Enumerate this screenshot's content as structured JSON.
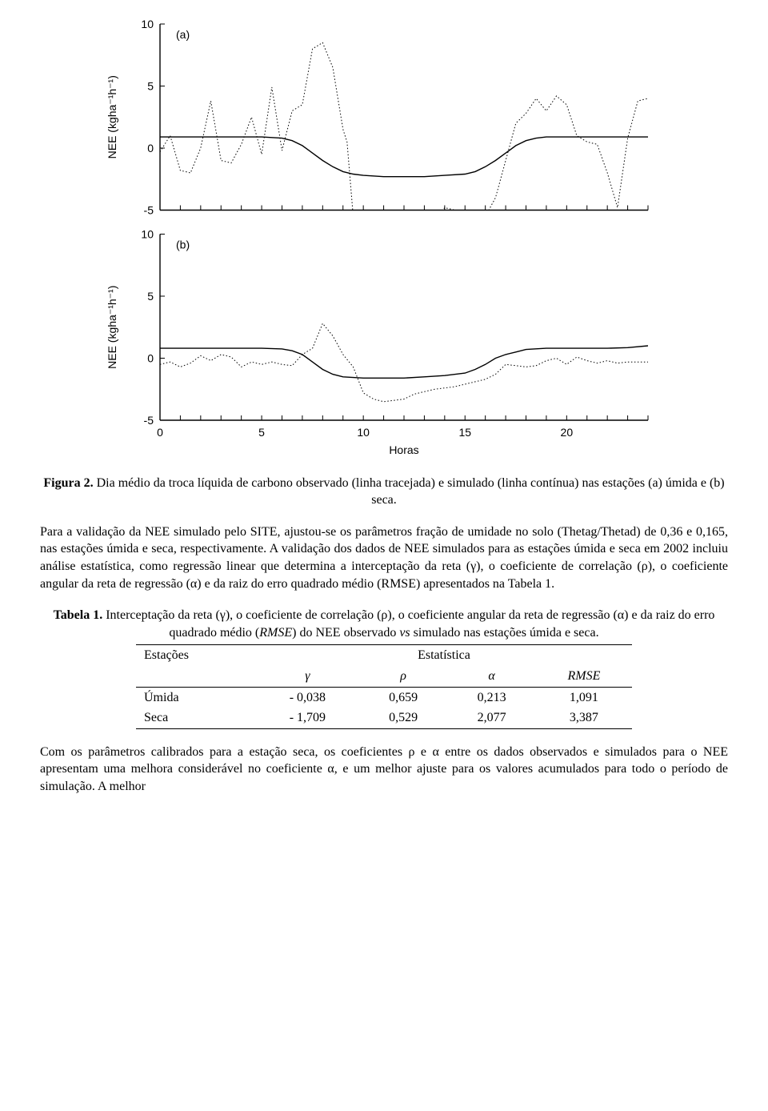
{
  "chart": {
    "background": "#ffffff",
    "axis_color": "#000000",
    "solid_color": "#000000",
    "dotted_color": "#000000",
    "solid_dash": "none",
    "dotted_dash": "1.5,2.5",
    "solid_width": 1.4,
    "dotted_width": 1.0,
    "tick_fontsize": 14,
    "label_fontsize": 14,
    "panel_label_fontsize": 14,
    "xlabel": "Horas",
    "ylabel_a": "NEE (kgha⁻¹h⁻¹)",
    "ylabel_b": "NEE (kgha⁻¹h⁻¹)",
    "panel_a_label": "(a)",
    "panel_b_label": "(b)",
    "xlim": [
      0,
      24
    ],
    "xticks": [
      0,
      5,
      10,
      15,
      20
    ],
    "ylim": [
      -5,
      10
    ],
    "yticks": [
      -5,
      0,
      5,
      10
    ],
    "series_a_solid": [
      [
        0,
        0.9
      ],
      [
        1,
        0.9
      ],
      [
        2,
        0.9
      ],
      [
        3,
        0.9
      ],
      [
        4,
        0.9
      ],
      [
        5,
        0.9
      ],
      [
        6,
        0.8
      ],
      [
        6.5,
        0.6
      ],
      [
        7,
        0.2
      ],
      [
        7.5,
        -0.4
      ],
      [
        8,
        -1.0
      ],
      [
        8.5,
        -1.5
      ],
      [
        9,
        -1.9
      ],
      [
        9.5,
        -2.1
      ],
      [
        10,
        -2.2
      ],
      [
        11,
        -2.3
      ],
      [
        12,
        -2.3
      ],
      [
        13,
        -2.3
      ],
      [
        14,
        -2.2
      ],
      [
        15,
        -2.1
      ],
      [
        15.5,
        -1.9
      ],
      [
        16,
        -1.5
      ],
      [
        16.5,
        -1.0
      ],
      [
        17,
        -0.4
      ],
      [
        17.5,
        0.2
      ],
      [
        18,
        0.6
      ],
      [
        18.5,
        0.8
      ],
      [
        19,
        0.9
      ],
      [
        20,
        0.9
      ],
      [
        21,
        0.9
      ],
      [
        22,
        0.9
      ],
      [
        23,
        0.9
      ],
      [
        24,
        0.9
      ]
    ],
    "series_a_dotted": [
      [
        0,
        -0.3
      ],
      [
        0.5,
        1.0
      ],
      [
        1,
        -1.8
      ],
      [
        1.5,
        -2.0
      ],
      [
        2,
        0.0
      ],
      [
        2.5,
        3.8
      ],
      [
        3,
        -1.0
      ],
      [
        3.5,
        -1.2
      ],
      [
        4,
        0.3
      ],
      [
        4.5,
        2.5
      ],
      [
        5,
        -0.5
      ],
      [
        5.5,
        4.9
      ],
      [
        6,
        -0.2
      ],
      [
        6.5,
        3.0
      ],
      [
        7,
        3.5
      ],
      [
        7.5,
        8.0
      ],
      [
        8,
        8.5
      ],
      [
        8.5,
        6.5
      ],
      [
        9,
        1.5
      ],
      [
        9.2,
        0.5
      ],
      [
        9.5,
        -5.5
      ],
      [
        10,
        -6.5
      ],
      [
        10.5,
        -7.2
      ],
      [
        11,
        -6.5
      ],
      [
        11.5,
        -7.3
      ],
      [
        12,
        -6.8
      ],
      [
        12.5,
        -6.9
      ],
      [
        13,
        -6.0
      ],
      [
        13.5,
        -6.2
      ],
      [
        14,
        -4.8
      ],
      [
        14.5,
        -5.0
      ],
      [
        15,
        -5.4
      ],
      [
        15.5,
        -5.2
      ],
      [
        16,
        -5.5
      ],
      [
        16.5,
        -4.0
      ],
      [
        17,
        -1.0
      ],
      [
        17.5,
        2.0
      ],
      [
        18,
        2.8
      ],
      [
        18.5,
        4.0
      ],
      [
        19,
        3.0
      ],
      [
        19.5,
        4.2
      ],
      [
        20,
        3.5
      ],
      [
        20.5,
        1.0
      ],
      [
        21,
        0.5
      ],
      [
        21.5,
        0.3
      ],
      [
        22,
        -2.0
      ],
      [
        22.5,
        -4.8
      ],
      [
        23,
        0.8
      ],
      [
        23.5,
        3.8
      ],
      [
        24,
        4.0
      ]
    ],
    "series_b_solid": [
      [
        0,
        0.8
      ],
      [
        1,
        0.8
      ],
      [
        2,
        0.8
      ],
      [
        3,
        0.8
      ],
      [
        4,
        0.8
      ],
      [
        5,
        0.8
      ],
      [
        6,
        0.75
      ],
      [
        6.5,
        0.6
      ],
      [
        7,
        0.3
      ],
      [
        7.5,
        -0.3
      ],
      [
        8,
        -0.9
      ],
      [
        8.5,
        -1.3
      ],
      [
        9,
        -1.5
      ],
      [
        10,
        -1.6
      ],
      [
        11,
        -1.6
      ],
      [
        12,
        -1.6
      ],
      [
        13,
        -1.5
      ],
      [
        14,
        -1.4
      ],
      [
        15,
        -1.2
      ],
      [
        15.5,
        -0.9
      ],
      [
        16,
        -0.5
      ],
      [
        16.5,
        0.0
      ],
      [
        17,
        0.3
      ],
      [
        17.5,
        0.5
      ],
      [
        18,
        0.7
      ],
      [
        19,
        0.8
      ],
      [
        20,
        0.8
      ],
      [
        21,
        0.8
      ],
      [
        22,
        0.8
      ],
      [
        23,
        0.85
      ],
      [
        24,
        1.0
      ]
    ],
    "series_b_dotted": [
      [
        0,
        -0.5
      ],
      [
        0.5,
        -0.3
      ],
      [
        1,
        -0.7
      ],
      [
        1.5,
        -0.4
      ],
      [
        2,
        0.2
      ],
      [
        2.5,
        -0.2
      ],
      [
        3,
        0.3
      ],
      [
        3.5,
        0.1
      ],
      [
        4,
        -0.7
      ],
      [
        4.5,
        -0.3
      ],
      [
        5,
        -0.5
      ],
      [
        5.5,
        -0.3
      ],
      [
        6,
        -0.5
      ],
      [
        6.5,
        -0.6
      ],
      [
        7,
        0.3
      ],
      [
        7.5,
        0.8
      ],
      [
        8,
        2.8
      ],
      [
        8.5,
        1.8
      ],
      [
        9,
        0.3
      ],
      [
        9.5,
        -0.7
      ],
      [
        10,
        -2.8
      ],
      [
        10.5,
        -3.3
      ],
      [
        11,
        -3.5
      ],
      [
        11.5,
        -3.4
      ],
      [
        12,
        -3.3
      ],
      [
        12.5,
        -2.9
      ],
      [
        13,
        -2.7
      ],
      [
        13.5,
        -2.5
      ],
      [
        14,
        -2.4
      ],
      [
        14.5,
        -2.3
      ],
      [
        15,
        -2.1
      ],
      [
        15.5,
        -1.9
      ],
      [
        16,
        -1.7
      ],
      [
        16.5,
        -1.3
      ],
      [
        17,
        -0.5
      ],
      [
        17.5,
        -0.6
      ],
      [
        18,
        -0.7
      ],
      [
        18.5,
        -0.6
      ],
      [
        19,
        -0.2
      ],
      [
        19.5,
        0.0
      ],
      [
        20,
        -0.5
      ],
      [
        20.5,
        0.1
      ],
      [
        21,
        -0.2
      ],
      [
        21.5,
        -0.4
      ],
      [
        22,
        -0.2
      ],
      [
        22.5,
        -0.4
      ],
      [
        23,
        -0.3
      ],
      [
        23.5,
        -0.3
      ],
      [
        24,
        -0.3
      ]
    ]
  },
  "figure_caption": {
    "bold": "Figura 2.",
    "rest": " Dia médio da troca líquida de carbono observado (linha tracejada) e simulado (linha contínua) nas estações (a) úmida e (b) seca."
  },
  "para1": "Para a validação da NEE simulado pelo SITE, ajustou-se os parâmetros fração de umidade no solo (Thetag/Thetad) de 0,36 e 0,165, nas estações úmida e seca, respectivamente. A validação dos dados de NEE simulados para as estações úmida e seca em 2002 incluiu análise estatística, como regressão linear que determina a interceptação da reta (γ), o coeficiente de correlação (ρ), o coeficiente angular da reta de regressão (α) e da raiz do erro quadrado médio (RMSE) apresentados na Tabela 1.",
  "table_caption": {
    "bold": "Tabela 1.",
    "rest_before_italic": " Interceptação da reta (γ), o coeficiente de correlação (ρ), o coeficiente angular da reta de regressão (α) e da raiz do erro quadrado médio (",
    "italic1": "RMSE",
    "rest_mid": ") do NEE observado ",
    "italic2": "vs",
    "rest_after": " simulado nas estações úmida e seca."
  },
  "table": {
    "header_row": {
      "c1": "Estações",
      "c2": "Estatística"
    },
    "sub_row": {
      "c1": "",
      "c2": "γ",
      "c3": "ρ",
      "c4": "α",
      "c5": "RMSE"
    },
    "rows": [
      {
        "label": "Úmida",
        "gamma": "- 0,038",
        "rho": "0,659",
        "alpha": "0,213",
        "rmse": "1,091"
      },
      {
        "label": "Seca",
        "gamma": "- 1,709",
        "rho": "0,529",
        "alpha": "2,077",
        "rmse": "3,387"
      }
    ]
  },
  "para2": "Com os parâmetros calibrados para a estação seca, os coeficientes ρ e α entre os dados observados e simulados para o NEE apresentam uma melhora considerável no coeficiente α, e um melhor ajuste para os valores acumulados para todo o período de simulação. A melhor"
}
